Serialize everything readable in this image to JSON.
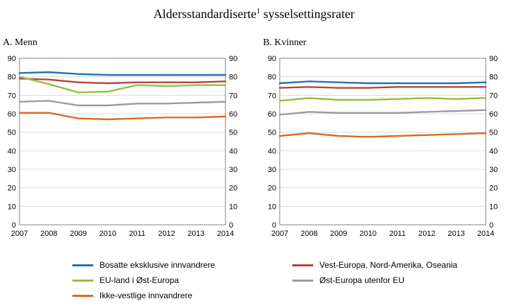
{
  "title": {
    "part1": "Aldersstandardiserte",
    "sup": "1",
    "part2": "sysselsettingsrater"
  },
  "colors": {
    "blue": "#2171b5",
    "red": "#b5423e",
    "green": "#94bd3d",
    "orange": "#db6a1c",
    "gray": "#9b9b9b",
    "plot_border": "#808080",
    "gridline": "#d9d9d9"
  },
  "chart_data": [
    {
      "type": "line",
      "title": "A. Menn",
      "x": [
        2007,
        2008,
        2009,
        2010,
        2011,
        2012,
        2013,
        2014
      ],
      "ylim": [
        0,
        90
      ],
      "ytick_step": 10,
      "grid": true,
      "series": [
        {
          "name": "Bosatte eksklusive innvandrere",
          "color": "#2171b5",
          "values": [
            82,
            82.5,
            81.5,
            81,
            81,
            81,
            81,
            81
          ]
        },
        {
          "name": "Vest-Europa, Nord-Amerika, Oseania",
          "color": "#b5423e",
          "values": [
            79,
            78.5,
            77,
            76.5,
            77,
            77,
            77,
            77.5
          ]
        },
        {
          "name": "EU-land i Øst-Europa",
          "color": "#94bd3d",
          "values": [
            80,
            76,
            71.5,
            72,
            75.5,
            75,
            75.5,
            75.5
          ]
        },
        {
          "name": "Øst-Europa utenfor EU",
          "color": "#9b9b9b",
          "values": [
            66.5,
            67,
            64.5,
            64.5,
            65.5,
            65.5,
            66,
            66.5
          ]
        },
        {
          "name": "Ikke-vestlige innvandrere",
          "color": "#db6a1c",
          "values": [
            60.5,
            60.5,
            57.5,
            57,
            57.5,
            58,
            58,
            58.5
          ]
        }
      ]
    },
    {
      "type": "line",
      "title": "B. Kvinner",
      "x": [
        2007,
        2008,
        2009,
        2010,
        2011,
        2012,
        2013,
        2014
      ],
      "ylim": [
        0,
        90
      ],
      "ytick_step": 10,
      "grid": true,
      "series": [
        {
          "name": "Bosatte eksklusive innvandrere",
          "color": "#2171b5",
          "values": [
            76.5,
            77.5,
            77,
            76.5,
            76.5,
            76.5,
            76.5,
            77
          ]
        },
        {
          "name": "Vest-Europa, Nord-Amerika, Oseania",
          "color": "#b5423e",
          "values": [
            74,
            74.5,
            74,
            74,
            74.5,
            74.5,
            74.5,
            74.5
          ]
        },
        {
          "name": "EU-land i Øst-Europa",
          "color": "#94bd3d",
          "values": [
            67,
            68.5,
            67.5,
            67.5,
            68,
            68.5,
            68,
            68.5
          ]
        },
        {
          "name": "Øst-Europa utenfor EU",
          "color": "#9b9b9b",
          "values": [
            59.5,
            61,
            60.5,
            60.5,
            60.5,
            61,
            61.5,
            62
          ]
        },
        {
          "name": "Ikke-vestlige innvandrere",
          "color": "#db6a1c",
          "values": [
            48,
            49.5,
            48,
            47.5,
            48,
            48.5,
            49,
            49.5
          ]
        }
      ]
    }
  ],
  "legend": {
    "columns": [
      [
        {
          "label": "Bosatte eksklusive innvandrere",
          "color": "#2171b5"
        },
        {
          "label": "EU-land i Øst-Europa",
          "color": "#94bd3d"
        },
        {
          "label": "Ikke-vestlige innvandrere",
          "color": "#db6a1c"
        }
      ],
      [
        {
          "label": "Vest-Europa, Nord-Amerika, Oseania",
          "color": "#b5423e"
        },
        {
          "label": "Øst-Europa utenfor EU",
          "color": "#9b9b9b"
        }
      ]
    ]
  }
}
